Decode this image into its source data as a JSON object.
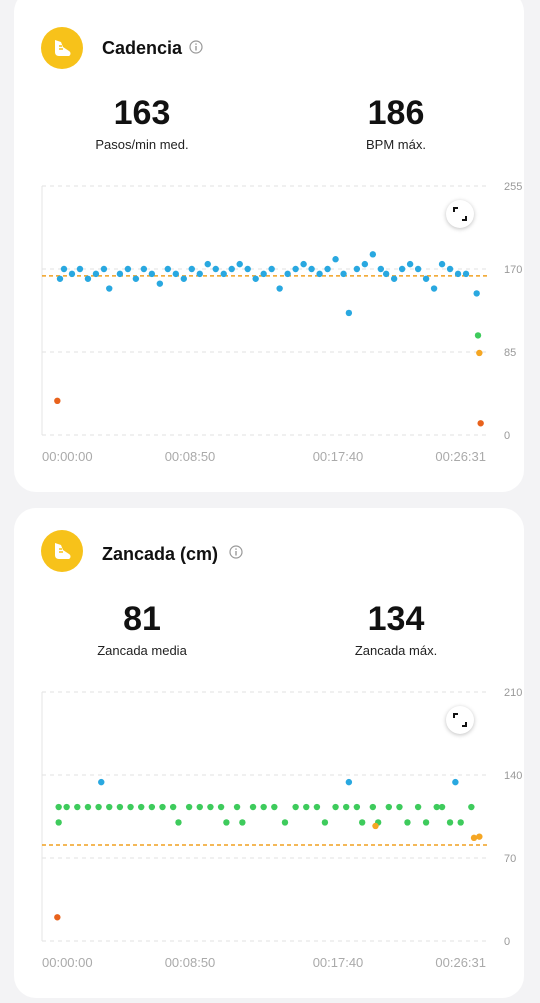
{
  "cadence": {
    "title": "Cadencia",
    "avg_value": "163",
    "avg_label": "Pasos/min med.",
    "max_value": "186",
    "max_label": "BPM máx.",
    "icon": "running-shoe-icon",
    "chart_data": {
      "type": "scatter",
      "x_ticks": [
        "00:00:00",
        "00:08:50",
        "00:17:40",
        "00:26:31"
      ],
      "y_ticks": [
        "255",
        "170",
        "85",
        "0"
      ],
      "ylim": [
        0,
        255
      ],
      "xlim": [
        0,
        1600
      ],
      "average_line": 163,
      "series": [
        {
          "color": "#29a8e0",
          "points": [
            [
              15,
              160
            ],
            [
              30,
              170
            ],
            [
              60,
              165
            ],
            [
              90,
              170
            ],
            [
              120,
              160
            ],
            [
              150,
              165
            ],
            [
              180,
              170
            ],
            [
              200,
              150
            ],
            [
              240,
              165
            ],
            [
              270,
              170
            ],
            [
              300,
              160
            ],
            [
              330,
              170
            ],
            [
              360,
              165
            ],
            [
              390,
              155
            ],
            [
              420,
              170
            ],
            [
              450,
              165
            ],
            [
              480,
              160
            ],
            [
              510,
              170
            ],
            [
              540,
              165
            ],
            [
              570,
              175
            ],
            [
              600,
              170
            ],
            [
              630,
              165
            ],
            [
              660,
              170
            ],
            [
              690,
              175
            ],
            [
              720,
              170
            ],
            [
              750,
              160
            ],
            [
              780,
              165
            ],
            [
              810,
              170
            ],
            [
              840,
              150
            ],
            [
              870,
              165
            ],
            [
              900,
              170
            ],
            [
              930,
              175
            ],
            [
              960,
              170
            ],
            [
              990,
              165
            ],
            [
              1020,
              170
            ],
            [
              1050,
              180
            ],
            [
              1080,
              165
            ],
            [
              1100,
              125
            ],
            [
              1130,
              170
            ],
            [
              1160,
              175
            ],
            [
              1190,
              185
            ],
            [
              1220,
              170
            ],
            [
              1240,
              165
            ],
            [
              1270,
              160
            ],
            [
              1300,
              170
            ],
            [
              1330,
              175
            ],
            [
              1360,
              170
            ],
            [
              1390,
              160
            ],
            [
              1420,
              150
            ],
            [
              1450,
              175
            ],
            [
              1480,
              170
            ],
            [
              1510,
              165
            ],
            [
              1540,
              165
            ],
            [
              1580,
              145
            ]
          ]
        },
        {
          "color": "#3ecb5c",
          "points": [
            [
              1585,
              102
            ]
          ]
        },
        {
          "color": "#f5a623",
          "points": [
            [
              1590,
              84
            ]
          ]
        },
        {
          "color": "#e8621c",
          "points": [
            [
              5,
              35
            ],
            [
              1595,
              12
            ]
          ]
        }
      ]
    }
  },
  "stride": {
    "title": "Zancada (cm)",
    "avg_value": "81",
    "avg_label": "Zancada media",
    "max_value": "134",
    "max_label": "Zancada máx.",
    "icon": "running-shoe-icon",
    "chart_data": {
      "type": "scatter",
      "x_ticks": [
        "00:00:00",
        "00:08:50",
        "00:17:40",
        "00:26:31"
      ],
      "y_ticks": [
        "210",
        "140",
        "70",
        "0"
      ],
      "ylim": [
        0,
        210
      ],
      "xlim": [
        0,
        1600
      ],
      "average_line": 81,
      "series": [
        {
          "color": "#3ecb5c",
          "points": [
            [
              10,
              113
            ],
            [
              10,
              100
            ],
            [
              40,
              113
            ],
            [
              80,
              113
            ],
            [
              120,
              113
            ],
            [
              160,
              113
            ],
            [
              200,
              113
            ],
            [
              240,
              113
            ],
            [
              280,
              113
            ],
            [
              320,
              113
            ],
            [
              360,
              113
            ],
            [
              400,
              113
            ],
            [
              440,
              113
            ],
            [
              460,
              100
            ],
            [
              500,
              113
            ],
            [
              540,
              113
            ],
            [
              580,
              113
            ],
            [
              620,
              113
            ],
            [
              640,
              100
            ],
            [
              680,
              113
            ],
            [
              700,
              100
            ],
            [
              740,
              113
            ],
            [
              780,
              113
            ],
            [
              820,
              113
            ],
            [
              860,
              100
            ],
            [
              900,
              113
            ],
            [
              940,
              113
            ],
            [
              980,
              113
            ],
            [
              1010,
              100
            ],
            [
              1050,
              113
            ],
            [
              1090,
              113
            ],
            [
              1130,
              113
            ],
            [
              1150,
              100
            ],
            [
              1190,
              113
            ],
            [
              1210,
              100
            ],
            [
              1250,
              113
            ],
            [
              1290,
              113
            ],
            [
              1320,
              100
            ],
            [
              1360,
              113
            ],
            [
              1390,
              100
            ],
            [
              1430,
              113
            ],
            [
              1450,
              113
            ],
            [
              1480,
              100
            ],
            [
              1520,
              100
            ],
            [
              1560,
              113
            ]
          ]
        },
        {
          "color": "#29a8e0",
          "points": [
            [
              170,
              134
            ],
            [
              1100,
              134
            ],
            [
              1500,
              134
            ]
          ]
        },
        {
          "color": "#f5a623",
          "points": [
            [
              1200,
              97
            ],
            [
              1570,
              87
            ],
            [
              1590,
              88
            ]
          ]
        },
        {
          "color": "#e8621c",
          "points": [
            [
              5,
              20
            ]
          ]
        }
      ]
    }
  }
}
